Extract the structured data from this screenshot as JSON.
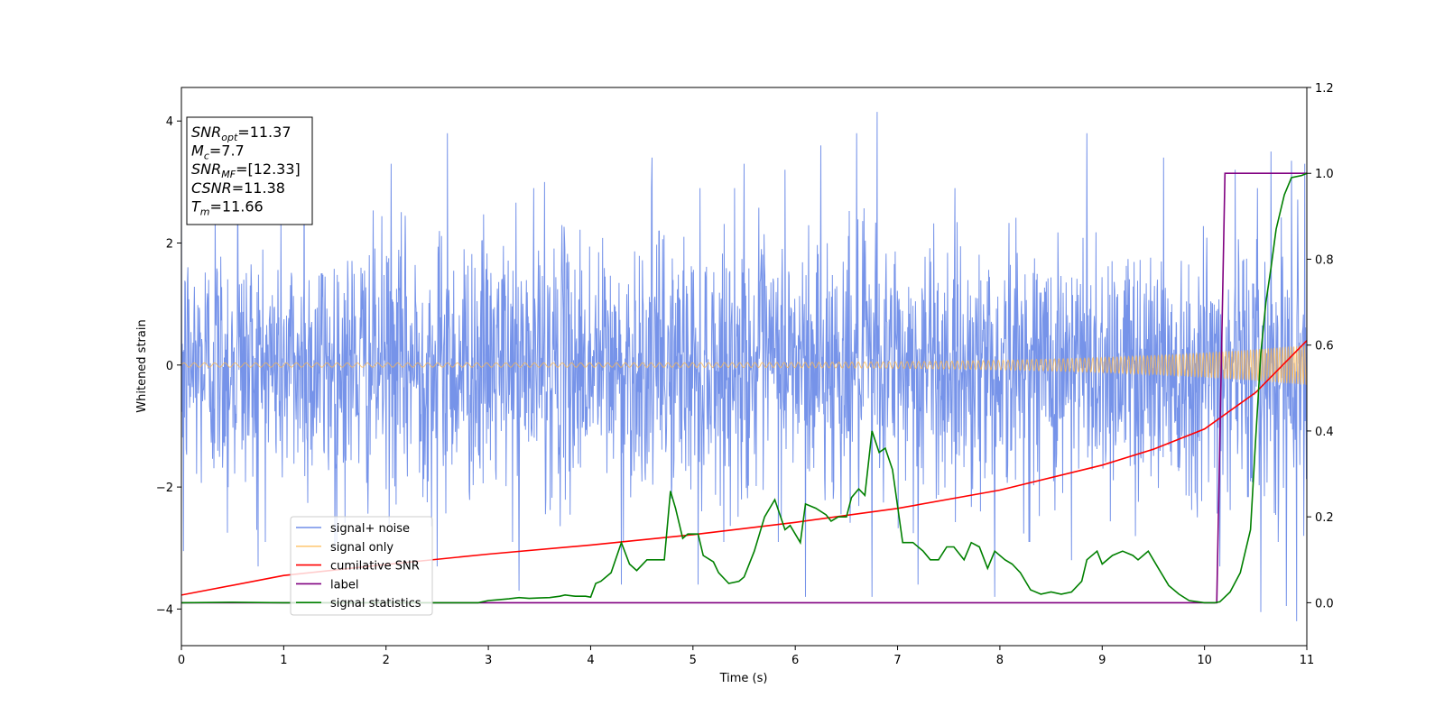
{
  "chart_data": {
    "type": "line",
    "title": "",
    "xlabel": "Time (s)",
    "ylabel": "Whitened strain",
    "xlim": [
      0,
      11
    ],
    "ylim": [
      -4.6,
      4.55
    ],
    "y2lim": [
      -0.1,
      1.2
    ],
    "grid": false,
    "legend_position": "lower-left",
    "x_ticks": [
      "0",
      "1",
      "2",
      "3",
      "4",
      "5",
      "6",
      "7",
      "8",
      "9",
      "10",
      "11"
    ],
    "y_ticks": [
      "4",
      "2",
      "0",
      "−2",
      "−4"
    ],
    "y2_ticks": [
      "1.2",
      "1.0",
      "0.8",
      "0.6",
      "0.4",
      "0.2",
      "0.0"
    ],
    "annotation": {
      "lines": [
        {
          "sym": "SNR",
          "sub": "opt",
          "value": "=11.37"
        },
        {
          "sym": "M",
          "sub": "c",
          "value": "=7.7"
        },
        {
          "sym": "SNR",
          "sub": "MF",
          "value": "=[12.33]"
        },
        {
          "sym": "CSNR",
          "sub": "",
          "value": "=11.38"
        },
        {
          "sym": "T",
          "sub": "m",
          "value": "=11.66"
        }
      ]
    },
    "series": [
      {
        "name": "signal+ noise",
        "color": "#4169e1",
        "axis": "left",
        "style": "noise",
        "noise_std": 1.05,
        "extremes": [
          [
            0.02,
            -3.05
          ],
          [
            0.33,
            2.55
          ],
          [
            0.45,
            -2.75
          ],
          [
            0.55,
            3.3
          ],
          [
            0.75,
            -3.3
          ],
          [
            1.2,
            3.5
          ],
          [
            1.5,
            -3.0
          ],
          [
            2.05,
            3.3
          ],
          [
            2.5,
            -3.3
          ],
          [
            2.6,
            3.8
          ],
          [
            3.3,
            -3.7
          ],
          [
            3.55,
            3.0
          ],
          [
            4.3,
            -3.6
          ],
          [
            4.6,
            3.4
          ],
          [
            5.05,
            -3.6
          ],
          [
            5.5,
            3.3
          ],
          [
            5.9,
            3.2
          ],
          [
            6.1,
            -3.8
          ],
          [
            6.25,
            3.6
          ],
          [
            6.6,
            3.8
          ],
          [
            6.75,
            -3.8
          ],
          [
            6.8,
            4.15
          ],
          [
            7.2,
            -3.6
          ],
          [
            7.95,
            -3.8
          ],
          [
            8.7,
            -3.2
          ],
          [
            8.85,
            3.8
          ],
          [
            9.6,
            3.4
          ],
          [
            10.15,
            -3.3
          ],
          [
            10.3,
            3.2
          ],
          [
            10.55,
            -4.05
          ],
          [
            10.65,
            3.5
          ],
          [
            10.8,
            -3.95
          ],
          [
            10.85,
            3.35
          ],
          [
            10.9,
            -4.2
          ],
          [
            10.98,
            3.3
          ]
        ]
      },
      {
        "name": "signal only",
        "color": "#ffb84d",
        "axis": "left",
        "style": "chirp",
        "amplitude_start": 0.035,
        "amplitude_end": 0.33
      },
      {
        "name": "cumilative SNR",
        "color": "#ff0000",
        "axis": "left",
        "x": [
          0,
          1,
          2,
          3,
          4,
          5,
          6,
          7,
          8,
          9,
          9.5,
          10,
          10.5,
          11
        ],
        "y": [
          -3.77,
          -3.45,
          -3.27,
          -3.1,
          -2.95,
          -2.78,
          -2.58,
          -2.35,
          -2.05,
          -1.64,
          -1.38,
          -1.05,
          -0.45,
          0.4
        ]
      },
      {
        "name": "label",
        "color": "#800080",
        "axis": "right",
        "x": [
          0,
          10.12,
          10.2,
          11
        ],
        "y": [
          0,
          0,
          1,
          1
        ]
      },
      {
        "name": "signal statistics",
        "color": "#008000",
        "axis": "right",
        "x": [
          0,
          0.5,
          1,
          2,
          2.9,
          3.0,
          3.1,
          3.2,
          3.3,
          3.4,
          3.5,
          3.6,
          3.7,
          3.75,
          3.85,
          3.95,
          4.0,
          4.05,
          4.1,
          4.2,
          4.3,
          4.38,
          4.45,
          4.55,
          4.65,
          4.72,
          4.78,
          4.83,
          4.9,
          4.95,
          5.05,
          5.1,
          5.2,
          5.25,
          5.35,
          5.45,
          5.5,
          5.6,
          5.7,
          5.8,
          5.9,
          5.95,
          6.05,
          6.1,
          6.2,
          6.3,
          6.35,
          6.42,
          6.5,
          6.55,
          6.62,
          6.68,
          6.75,
          6.82,
          6.88,
          6.95,
          7.05,
          7.15,
          7.25,
          7.32,
          7.4,
          7.48,
          7.55,
          7.65,
          7.72,
          7.8,
          7.88,
          7.95,
          8.05,
          8.12,
          8.2,
          8.3,
          8.4,
          8.5,
          8.6,
          8.7,
          8.8,
          8.85,
          8.95,
          9.0,
          9.1,
          9.2,
          9.3,
          9.35,
          9.45,
          9.55,
          9.65,
          9.75,
          9.85,
          10.0,
          10.1,
          10.15,
          10.25,
          10.35,
          10.45,
          10.5,
          10.55,
          10.6,
          10.65,
          10.7,
          10.78,
          10.85,
          10.95,
          11.0
        ],
        "y": [
          0,
          0.001,
          0,
          0.0,
          0.0,
          0.005,
          0.007,
          0.009,
          0.012,
          0.01,
          0.011,
          0.012,
          0.015,
          0.018,
          0.015,
          0.015,
          0.013,
          0.045,
          0.05,
          0.07,
          0.14,
          0.09,
          0.075,
          0.1,
          0.1,
          0.1,
          0.26,
          0.22,
          0.15,
          0.16,
          0.16,
          0.11,
          0.095,
          0.07,
          0.045,
          0.05,
          0.06,
          0.12,
          0.2,
          0.24,
          0.17,
          0.18,
          0.14,
          0.23,
          0.22,
          0.205,
          0.19,
          0.2,
          0.2,
          0.245,
          0.265,
          0.25,
          0.4,
          0.35,
          0.36,
          0.31,
          0.14,
          0.14,
          0.12,
          0.1,
          0.1,
          0.13,
          0.13,
          0.1,
          0.14,
          0.13,
          0.08,
          0.12,
          0.1,
          0.09,
          0.07,
          0.03,
          0.02,
          0.025,
          0.02,
          0.025,
          0.05,
          0.1,
          0.12,
          0.09,
          0.11,
          0.12,
          0.11,
          0.1,
          0.12,
          0.08,
          0.04,
          0.02,
          0.005,
          0.0,
          0.0,
          0.002,
          0.025,
          0.07,
          0.17,
          0.38,
          0.58,
          0.7,
          0.78,
          0.87,
          0.95,
          0.99,
          0.995,
          1.0
        ]
      }
    ]
  }
}
